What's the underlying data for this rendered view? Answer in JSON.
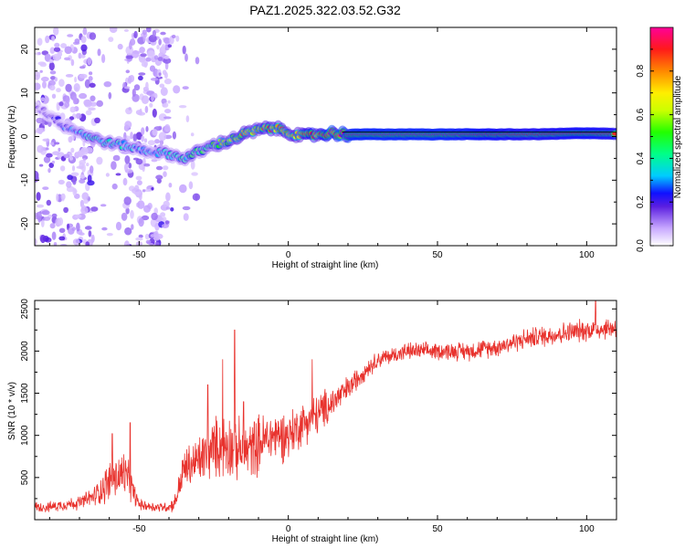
{
  "title": "PAZ1.2025.322.03.52.G32",
  "colors": {
    "snr_line": "#e8322d",
    "ridge_line": "#000000"
  },
  "chart_data": [
    {
      "type": "heatmap",
      "name": "spectrogram",
      "xlabel": "Height of straight line (km)",
      "ylabel": "Frequency (Hz)",
      "xlim": [
        -85,
        110
      ],
      "ylim": [
        -25,
        25
      ],
      "xticks": [
        -50,
        0,
        50,
        100
      ],
      "xtick_labels": [
        "-50",
        "0",
        "50",
        "100"
      ],
      "yticks": [
        -20,
        -10,
        0,
        10,
        20
      ],
      "ytick_labels": [
        "-20",
        "-10",
        "0",
        "10",
        "20"
      ],
      "colorbar": {
        "label": "Normalized spectral amplitude",
        "range": [
          0,
          1
        ],
        "ticks": [
          0.0,
          0.2,
          0.4,
          0.6,
          0.8
        ],
        "tick_labels": [
          "0.0",
          "0.2",
          "0.4",
          "0.6",
          "0.8"
        ]
      },
      "ridge": {
        "x": [
          -85,
          -80,
          -75,
          -70,
          -65,
          -60,
          -55,
          -50,
          -45,
          -40,
          -35,
          -30,
          -25,
          -20,
          -15,
          -10,
          -5,
          0,
          5,
          10,
          15,
          20,
          30,
          40,
          50,
          60,
          70,
          80,
          90,
          100,
          110
        ],
        "freq": [
          7,
          5,
          2.5,
          1,
          -0.5,
          -1.5,
          -2,
          -3,
          -3.5,
          -4,
          -5,
          -3.5,
          -2,
          -1,
          0.5,
          1.5,
          2,
          1,
          0,
          0.5,
          0.8,
          0.5,
          0.5,
          0.5,
          0.5,
          0.5,
          0.5,
          0.5,
          0.6,
          0.8,
          0.6
        ],
        "amplitude": [
          0.12,
          0.18,
          0.25,
          0.3,
          0.35,
          0.4,
          0.35,
          0.3,
          0.3,
          0.35,
          0.4,
          0.45,
          0.5,
          0.6,
          0.7,
          0.7,
          0.75,
          0.7,
          0.8,
          0.9,
          0.95,
          1.0,
          1.0,
          1.0,
          1.0,
          0.98,
          0.95,
          0.9,
          0.92,
          0.95,
          0.9
        ]
      },
      "reference_line": {
        "x_start": 18,
        "x_end": 110,
        "freq": 1
      }
    },
    {
      "type": "line",
      "name": "snr",
      "xlabel": "Height of straight line (km)",
      "ylabel": "SNR (10 * v/v)",
      "xlim": [
        -85,
        110
      ],
      "ylim": [
        0,
        2600
      ],
      "xticks": [
        -50,
        0,
        50,
        100
      ],
      "xtick_labels": [
        "-50",
        "0",
        "50",
        "100"
      ],
      "yticks": [
        500,
        1000,
        1500,
        2000,
        2500
      ],
      "ytick_labels": [
        "500",
        "1000",
        "1500",
        "2000",
        "2500"
      ],
      "series": [
        {
          "name": "SNR",
          "x": [
            -85,
            -80,
            -75,
            -70,
            -65,
            -60,
            -55,
            -50,
            -45,
            -40,
            -38,
            -35,
            -30,
            -25,
            -20,
            -15,
            -10,
            -5,
            0,
            5,
            10,
            15,
            20,
            25,
            30,
            40,
            50,
            60,
            70,
            80,
            90,
            100,
            110
          ],
          "mean": [
            150,
            150,
            180,
            200,
            280,
            450,
            550,
            180,
            150,
            150,
            200,
            600,
            700,
            850,
            900,
            800,
            900,
            1000,
            1000,
            1150,
            1250,
            1400,
            1550,
            1750,
            1900,
            2000,
            2000,
            2000,
            2050,
            2150,
            2200,
            2250,
            2280
          ],
          "noise": [
            60,
            60,
            70,
            80,
            120,
            250,
            300,
            60,
            60,
            60,
            100,
            250,
            300,
            350,
            400,
            350,
            350,
            300,
            300,
            250,
            250,
            200,
            150,
            120,
            100,
            100,
            100,
            110,
            110,
            120,
            130,
            130,
            130
          ]
        }
      ],
      "spikes": [
        {
          "x": -59,
          "y": 1020
        },
        {
          "x": -53,
          "y": 1150
        },
        {
          "x": -27,
          "y": 1600
        },
        {
          "x": -22,
          "y": 1900
        },
        {
          "x": -18,
          "y": 2250
        },
        {
          "x": -15,
          "y": 1400
        },
        {
          "x": 8,
          "y": 1900
        },
        {
          "x": 103,
          "y": 2600
        }
      ]
    }
  ]
}
